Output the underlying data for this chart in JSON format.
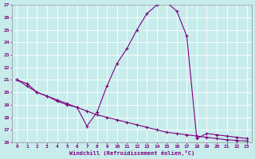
{
  "xlabel": "Windchill (Refroidissement éolien,°C)",
  "background_color": "#c8ecec",
  "line_color": "#800080",
  "grid_color": "#b8dada",
  "xlim": [
    -0.5,
    23.5
  ],
  "ylim": [
    16,
    27
  ],
  "yticks": [
    16,
    17,
    18,
    19,
    20,
    21,
    22,
    23,
    24,
    25,
    26,
    27
  ],
  "xticks": [
    0,
    1,
    2,
    3,
    4,
    5,
    6,
    7,
    8,
    9,
    10,
    11,
    12,
    13,
    14,
    15,
    16,
    17,
    18,
    19,
    20,
    21,
    22,
    23
  ],
  "curve1_x": [
    0,
    1,
    2,
    3,
    4,
    5,
    6,
    7,
    8,
    9,
    10,
    11,
    12,
    13,
    14,
    15,
    16,
    17,
    18,
    19,
    20,
    21,
    22,
    23
  ],
  "curve1_y": [
    21.0,
    20.7,
    20.0,
    19.7,
    19.3,
    19.0,
    18.8,
    17.3,
    18.4,
    20.5,
    22.3,
    23.5,
    25.0,
    26.3,
    27.0,
    27.2,
    26.5,
    24.5,
    16.3,
    16.7,
    16.6,
    16.5,
    16.4,
    16.3
  ],
  "curve2_x": [
    0,
    1,
    2,
    3,
    4,
    5,
    6,
    7,
    8,
    9,
    10,
    11,
    12,
    13,
    14,
    15,
    16,
    17,
    18,
    19,
    20,
    21,
    22,
    23
  ],
  "curve2_y": [
    21.0,
    20.5,
    20.0,
    19.7,
    19.4,
    19.1,
    18.8,
    18.5,
    18.2,
    18.0,
    17.8,
    17.6,
    17.4,
    17.2,
    17.0,
    16.8,
    16.7,
    16.6,
    16.5,
    16.4,
    16.3,
    16.2,
    16.15,
    16.1
  ]
}
